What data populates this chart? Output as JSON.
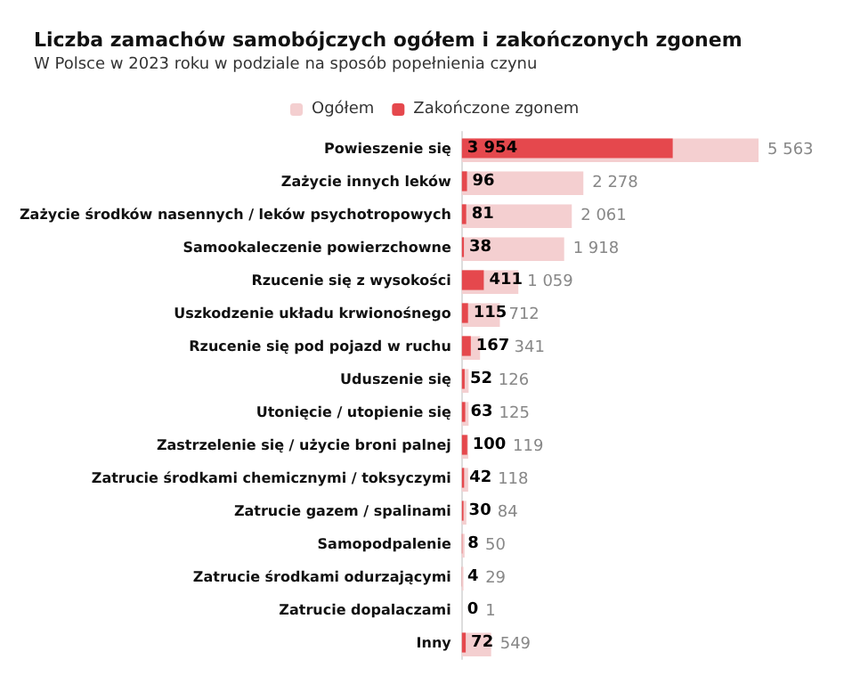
{
  "chart_data": {
    "type": "bar",
    "orientation": "horizontal",
    "title": "Liczba zamachów samobójczych ogółem i zakończonych zgonem",
    "subtitle": "W Polsce w 2023 roku w podziale na sposób popełnienia czynu",
    "categories": [
      "Powieszenie się",
      "Zażycie innych leków",
      "Zażycie środków nasennych / leków psychotropowych",
      "Samookaleczenie powierzchowne",
      "Rzucenie się z wysokości",
      "Uszkodzenie układu krwionośnego",
      "Rzucenie się pod pojazd w ruchu",
      "Uduszenie się",
      "Utonięcie / utopienie się",
      "Zastrzelenie się / użycie broni palnej",
      "Zatrucie środkami chemicznymi / toksyczymi",
      "Zatrucie gazem / spalinami",
      "Samopodpalenie",
      "Zatrucie środkami odurzającymi",
      "Zatrucie dopalaczami",
      "Inny"
    ],
    "series": [
      {
        "name": "Ogółem",
        "color": "#f4cfd0",
        "values": [
          5563,
          2278,
          2061,
          1918,
          1059,
          712,
          341,
          126,
          125,
          119,
          118,
          84,
          50,
          29,
          1,
          549
        ],
        "value_labels": [
          "5 563",
          "2 278",
          "2 061",
          "1 918",
          "1 059",
          "712",
          "341",
          "126",
          "125",
          "119",
          "118",
          "84",
          "50",
          "29",
          "1",
          "549"
        ]
      },
      {
        "name": "Zakończone zgonem",
        "color": "#e5484d",
        "values": [
          3954,
          96,
          81,
          38,
          411,
          115,
          167,
          52,
          63,
          100,
          42,
          30,
          8,
          4,
          0,
          72
        ],
        "value_labels": [
          "3 954",
          "96",
          "81",
          "38",
          "411",
          "115",
          "167",
          "52",
          "63",
          "100",
          "42",
          "30",
          "8",
          "4",
          "0",
          "72"
        ]
      }
    ],
    "legend": "top"
  }
}
